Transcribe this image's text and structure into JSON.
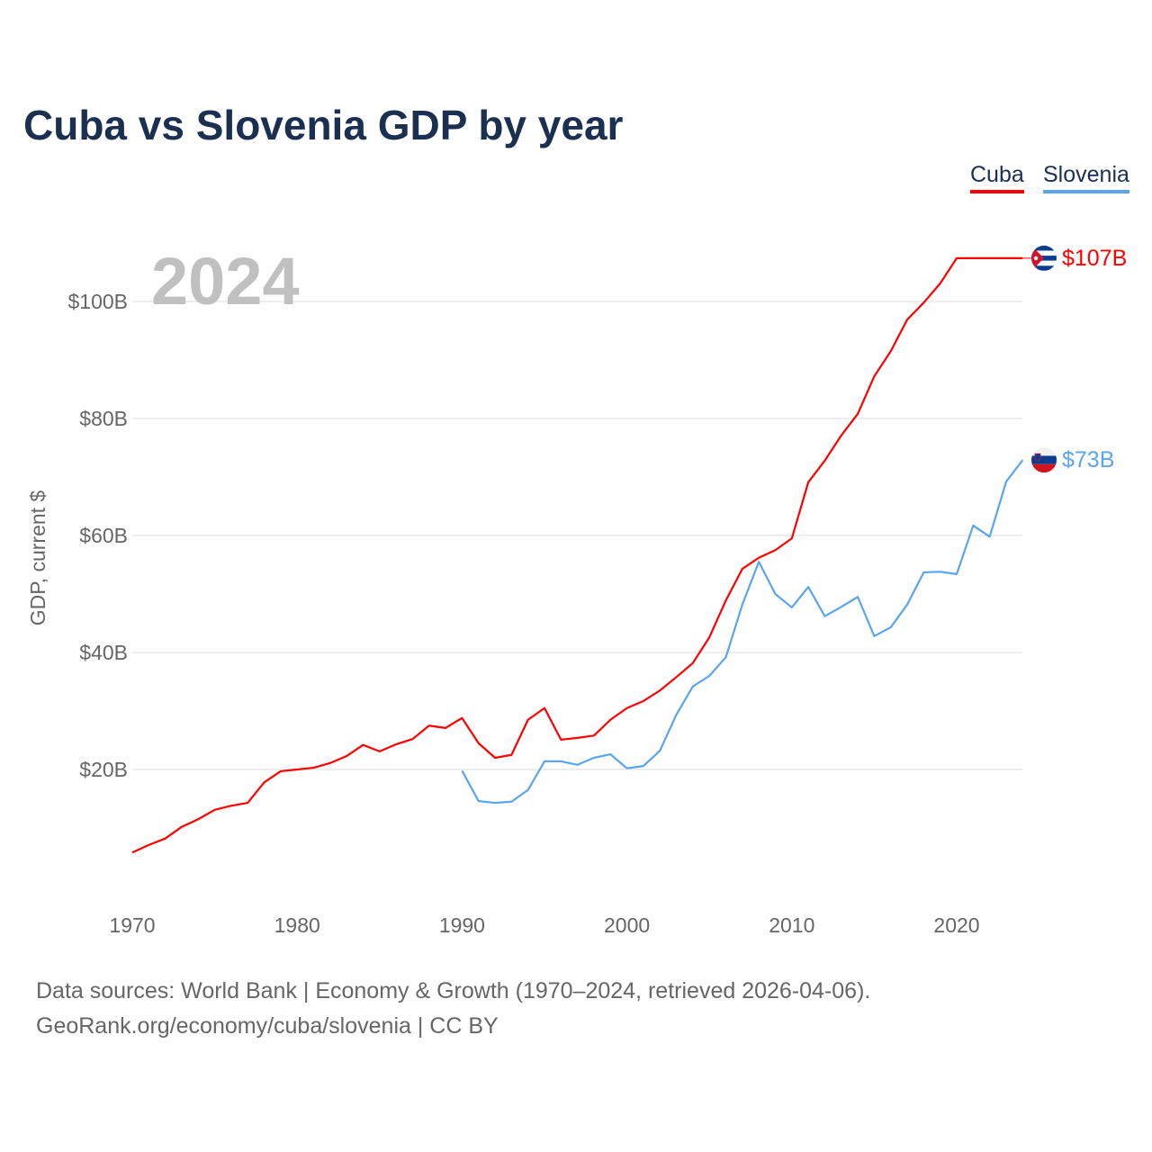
{
  "title": "Cuba vs Slovenia GDP by year",
  "year_label": "2024",
  "footer": {
    "line1": "Data sources: World Bank | Economy & Growth (1970–2024, retrieved 2026-04-06).",
    "line2": "GeoRank.org/economy/cuba/slovenia | CC BY"
  },
  "chart_data": {
    "type": "line",
    "title": "Cuba vs Slovenia GDP by year",
    "xlabel": "",
    "ylabel": "GDP, current $",
    "xlim": [
      1970,
      2024
    ],
    "ylim": [
      0,
      110
    ],
    "x_ticks": [
      1970,
      1980,
      1990,
      2000,
      2010,
      2020
    ],
    "x_tick_labels": [
      "1970",
      "1980",
      "1990",
      "2000",
      "2010",
      "2020"
    ],
    "y_ticks": [
      20,
      40,
      60,
      80,
      100
    ],
    "y_tick_labels": [
      "$20B",
      "$40B",
      "$60B",
      "$80B",
      "$100B"
    ],
    "grid": true,
    "legend_placement": "top-right",
    "series": [
      {
        "name": "Cuba",
        "color": "#ff0000",
        "end_label": "$107B",
        "flag": "cuba-flag",
        "start_year": 1970,
        "values": [
          5.8,
          7.1,
          8.2,
          10.2,
          11.5,
          13.1,
          13.8,
          14.3,
          17.8,
          19.7,
          20.0,
          20.3,
          21.1,
          22.3,
          24.2,
          23.1,
          24.3,
          25.2,
          27.5,
          27.1,
          28.8,
          24.5,
          22.0,
          22.5,
          28.5,
          30.5,
          25.1,
          25.4,
          25.8,
          28.5,
          30.5,
          31.7,
          33.5,
          35.8,
          38.2,
          42.6,
          48.9,
          54.3,
          56.2,
          57.5,
          59.5,
          69.1,
          72.8,
          77.1,
          80.8,
          87.2,
          91.5,
          96.9,
          99.8,
          103.1,
          107.4,
          107.4,
          107.4,
          107.4,
          107.4
        ]
      },
      {
        "name": "Slovenia",
        "color": "#5aa5ee",
        "end_label": "$73B",
        "flag": "slovenia-flag",
        "start_year": 1990,
        "values": [
          19.8,
          14.6,
          14.3,
          14.5,
          16.5,
          21.4,
          21.4,
          20.8,
          22.0,
          22.6,
          20.2,
          20.6,
          23.2,
          29.4,
          34.2,
          36.0,
          39.2,
          48.2,
          55.5,
          50.0,
          47.7,
          51.2,
          46.2,
          47.8,
          49.5,
          42.8,
          44.3,
          48.2,
          53.7,
          53.8,
          53.4,
          61.7,
          59.8,
          69.2,
          72.9
        ]
      }
    ]
  }
}
